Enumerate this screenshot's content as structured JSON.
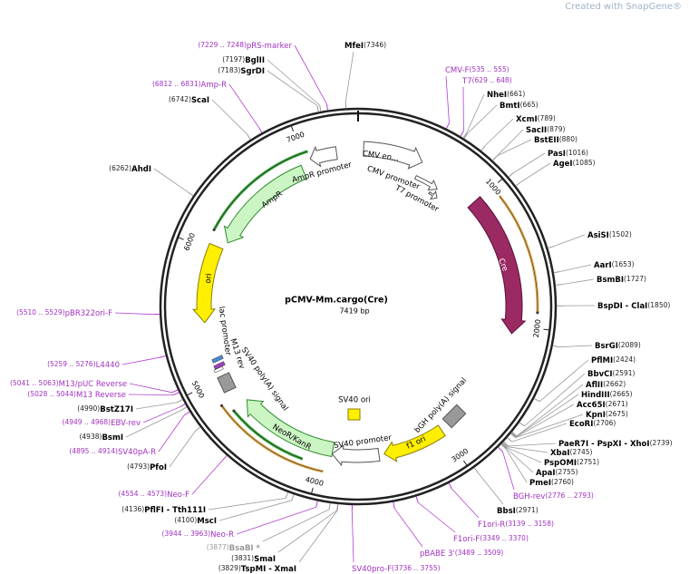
{
  "watermark": "Created with SnapGene®",
  "title": "pCMV-Mm.cargo(Cre)",
  "subtitle": "7419 bp",
  "sites": [
    {
      "name": "MfeI",
      "position": "(7346)"
    },
    {
      "name": "NheI",
      "position": "(661)"
    },
    {
      "name": "BmtI",
      "position": "(665)"
    },
    {
      "name": "XcmI",
      "position": "(789)"
    },
    {
      "name": "SacII",
      "position": "(879)"
    },
    {
      "name": "BstEII",
      "position": "(880)"
    },
    {
      "name": "PasI",
      "position": "(1016)"
    },
    {
      "name": "AgeI",
      "position": "(1085)"
    },
    {
      "name": "AsiSI",
      "position": "(1502)"
    },
    {
      "name": "AarI",
      "position": "(1653)"
    },
    {
      "name": "BsmBI",
      "position": "(1727)"
    },
    {
      "name": "BspDI - ClaI",
      "position": "(1850)"
    },
    {
      "name": "BsrGI",
      "position": "(2089)"
    },
    {
      "name": "PflMI",
      "position": "(2424)"
    },
    {
      "name": "BbvCI",
      "position": "(2591)"
    },
    {
      "name": "AflII",
      "position": "(2662)"
    },
    {
      "name": "HindIII",
      "position": "(2665)"
    },
    {
      "name": "Acc65I",
      "position": "(2671)"
    },
    {
      "name": "KpnI",
      "position": "(2675)"
    },
    {
      "name": "EcoRI",
      "position": "(2706)"
    },
    {
      "name": "PaeR7I - PspXI - XhoI",
      "position": "(2739)"
    },
    {
      "name": "XbaI",
      "position": "(2745)"
    },
    {
      "name": "PspOMI",
      "position": "(2751)"
    },
    {
      "name": "ApaI",
      "position": "(2755)"
    },
    {
      "name": "PmeI",
      "position": "(2760)"
    },
    {
      "name": "BbsI",
      "position": "(2971)"
    },
    {
      "name": "TspMI - XmaI",
      "position": "(3829)"
    },
    {
      "name": "SmaI",
      "position": "(3831)"
    },
    {
      "name": "BsaBI *",
      "position": "(3877)"
    },
    {
      "name": "MscI",
      "position": "(4100)"
    },
    {
      "name": "PflFI - Tth111I",
      "position": "(4136)"
    },
    {
      "name": "PfoI",
      "position": "(4793)"
    },
    {
      "name": "BsmI",
      "position": "(4938)"
    },
    {
      "name": "BstZ17I",
      "position": "(4990)"
    },
    {
      "name": "AhdI",
      "position": "(6262)"
    },
    {
      "name": "ScaI",
      "position": "(6742)"
    },
    {
      "name": "SgrDI",
      "position": "(7183)"
    },
    {
      "name": "BglII",
      "position": "(7197)"
    }
  ],
  "primers": [
    {
      "name": "pRS-marker",
      "range": "(7229 .. 7248)"
    },
    {
      "name": "Amp-R",
      "range": "(6812 .. 6831)"
    },
    {
      "name": "pBR322ori-F",
      "range": "(5510 .. 5529)"
    },
    {
      "name": "L4440",
      "range": "(5259 .. 5276)"
    },
    {
      "name": "M13/pUC Reverse",
      "range": "(5041 .. 5063)"
    },
    {
      "name": "M13 Reverse",
      "range": "(5028 .. 5044)"
    },
    {
      "name": "EBV-rev",
      "range": "(4949 .. 4968)"
    },
    {
      "name": "SV40pA-R",
      "range": "(4895 .. 4914)"
    },
    {
      "name": "Neo-F",
      "range": "(4554 .. 4573)"
    },
    {
      "name": "Neo-R",
      "range": "(3944 .. 3963)"
    },
    {
      "name": "SV40pro-F",
      "range": "(3736 .. 3755)"
    },
    {
      "name": "pBABE 3'",
      "range": "(3489 .. 3509)"
    },
    {
      "name": "F1ori-F",
      "range": "(3349 .. 3370)"
    },
    {
      "name": "F1ori-R",
      "range": "(3139 .. 3158)"
    },
    {
      "name": "BGH-rev",
      "range": "(2776 .. 2793)"
    },
    {
      "name": "CMV-F",
      "range": "(535 .. 555)"
    },
    {
      "name": "T7",
      "range": "(629 .. 648)"
    }
  ],
  "features": [
    "CMV en...",
    "CMV promoter",
    "T7 promoter",
    "AmpR promoter",
    "AmpR",
    "ori",
    "Cre",
    "lac promoter",
    "M13 rev",
    "SV40 poly(A) signal",
    "SV40 ori",
    "bGH poly(A) signal",
    "f1 ori",
    "SV40 promoter",
    "NeoR/KanR"
  ],
  "ruler": [
    1000,
    2000,
    3000,
    4000,
    5000,
    6000,
    7000
  ]
}
